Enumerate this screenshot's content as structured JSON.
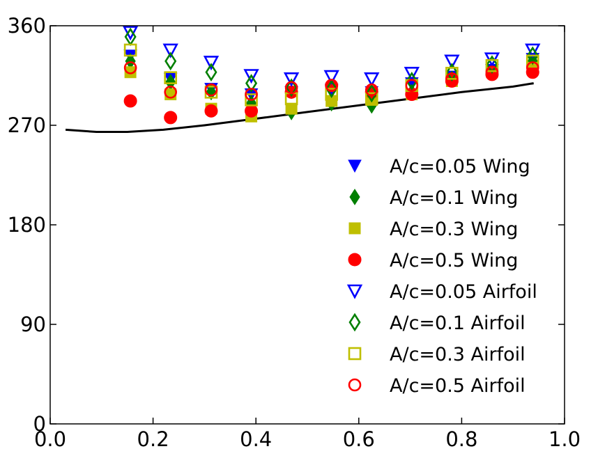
{
  "chart_data": {
    "type": "scatter",
    "xlim": [
      0.0,
      1.0
    ],
    "ylim": [
      0,
      360
    ],
    "x_ticks": [
      "0.0",
      "0.2",
      "0.4",
      "0.6",
      "0.8",
      "1.0"
    ],
    "y_ticks": [
      "0",
      "90",
      "180",
      "270",
      "360"
    ],
    "xlabel": "",
    "grid": false,
    "legend_position": "right",
    "x": [
      0.156,
      0.234,
      0.313,
      0.391,
      0.469,
      0.547,
      0.625,
      0.703,
      0.781,
      0.859,
      0.938
    ],
    "series": [
      {
        "name": "A/c=0.05 Wing",
        "marker": "triangle-down",
        "filled": true,
        "color": "#0000ff",
        "values": [
          333,
          312,
          303,
          298,
          300,
          302,
          300,
          308,
          314,
          320,
          330
        ]
      },
      {
        "name": "A/c=0.1 Wing",
        "marker": "diamond",
        "filled": true,
        "color": "#007f00",
        "values": [
          328,
          309,
          300,
          290,
          282,
          290,
          288,
          300,
          312,
          318,
          328
        ]
      },
      {
        "name": "A/c=0.3 Wing",
        "marker": "square",
        "filled": true,
        "color": "#bfbf00",
        "values": [
          318,
          298,
          285,
          278,
          285,
          292,
          293,
          298,
          310,
          318,
          322
        ]
      },
      {
        "name": "A/c=0.5 Wing",
        "marker": "circle",
        "filled": true,
        "color": "#ff0000",
        "values": [
          292,
          277,
          283,
          283,
          300,
          306,
          300,
          298,
          310,
          316,
          318
        ]
      },
      {
        "name": "A/c=0.05 Airfoil",
        "marker": "triangle-down",
        "filled": false,
        "color": "#0000ff",
        "values": [
          354,
          338,
          327,
          315,
          312,
          314,
          312,
          317,
          328,
          330,
          338
        ]
      },
      {
        "name": "A/c=0.1 Airfoil",
        "marker": "diamond",
        "filled": false,
        "color": "#007f00",
        "values": [
          350,
          328,
          318,
          308,
          304,
          303,
          299,
          310,
          318,
          325,
          333
        ]
      },
      {
        "name": "A/c=0.3 Airfoil",
        "marker": "square",
        "filled": false,
        "color": "#bfbf00",
        "values": [
          338,
          313,
          300,
          293,
          294,
          298,
          294,
          306,
          317,
          324,
          328
        ]
      },
      {
        "name": "A/c=0.5 Airfoil",
        "marker": "circle",
        "filled": false,
        "color": "#ff0000",
        "values": [
          322,
          300,
          302,
          298,
          304,
          306,
          302,
          306,
          312,
          318,
          322
        ]
      }
    ],
    "line": {
      "color": "#000000",
      "x": [
        0.03,
        0.09,
        0.15,
        0.22,
        0.3,
        0.4,
        0.5,
        0.6,
        0.7,
        0.8,
        0.9,
        0.94
      ],
      "values": [
        266,
        264,
        264,
        266,
        270,
        276,
        282,
        288,
        294,
        300,
        305,
        308
      ]
    }
  }
}
